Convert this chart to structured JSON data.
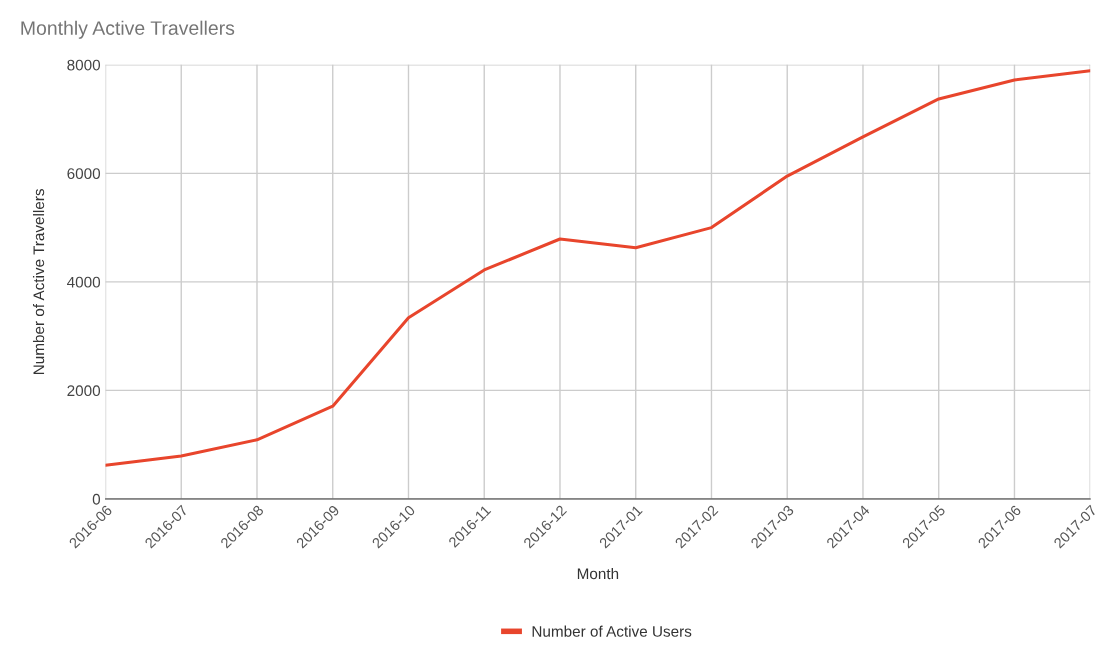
{
  "chart_data": {
    "type": "line",
    "title": "Monthly Active Travellers",
    "xlabel": "Month",
    "ylabel": "Number of Active Travellers",
    "categories": [
      "2016-06",
      "2016-07",
      "2016-08",
      "2016-09",
      "2016-10",
      "2016-11",
      "2016-12",
      "2017-01",
      "2017-02",
      "2017-03",
      "2017-04",
      "2017-05",
      "2017-06",
      "2017-07"
    ],
    "series": [
      {
        "name": "Number of Active Users",
        "color": "#e8452c",
        "values": [
          620,
          790,
          1090,
          1710,
          3340,
          4220,
          4790,
          4630,
          5000,
          5950,
          6670,
          7370,
          7720,
          7890
        ]
      }
    ],
    "ylim": [
      0,
      8000
    ],
    "yticks": [
      0,
      2000,
      4000,
      6000,
      8000
    ],
    "grid": true,
    "legend": "bottom",
    "marker": "none",
    "line_style": "solid"
  }
}
